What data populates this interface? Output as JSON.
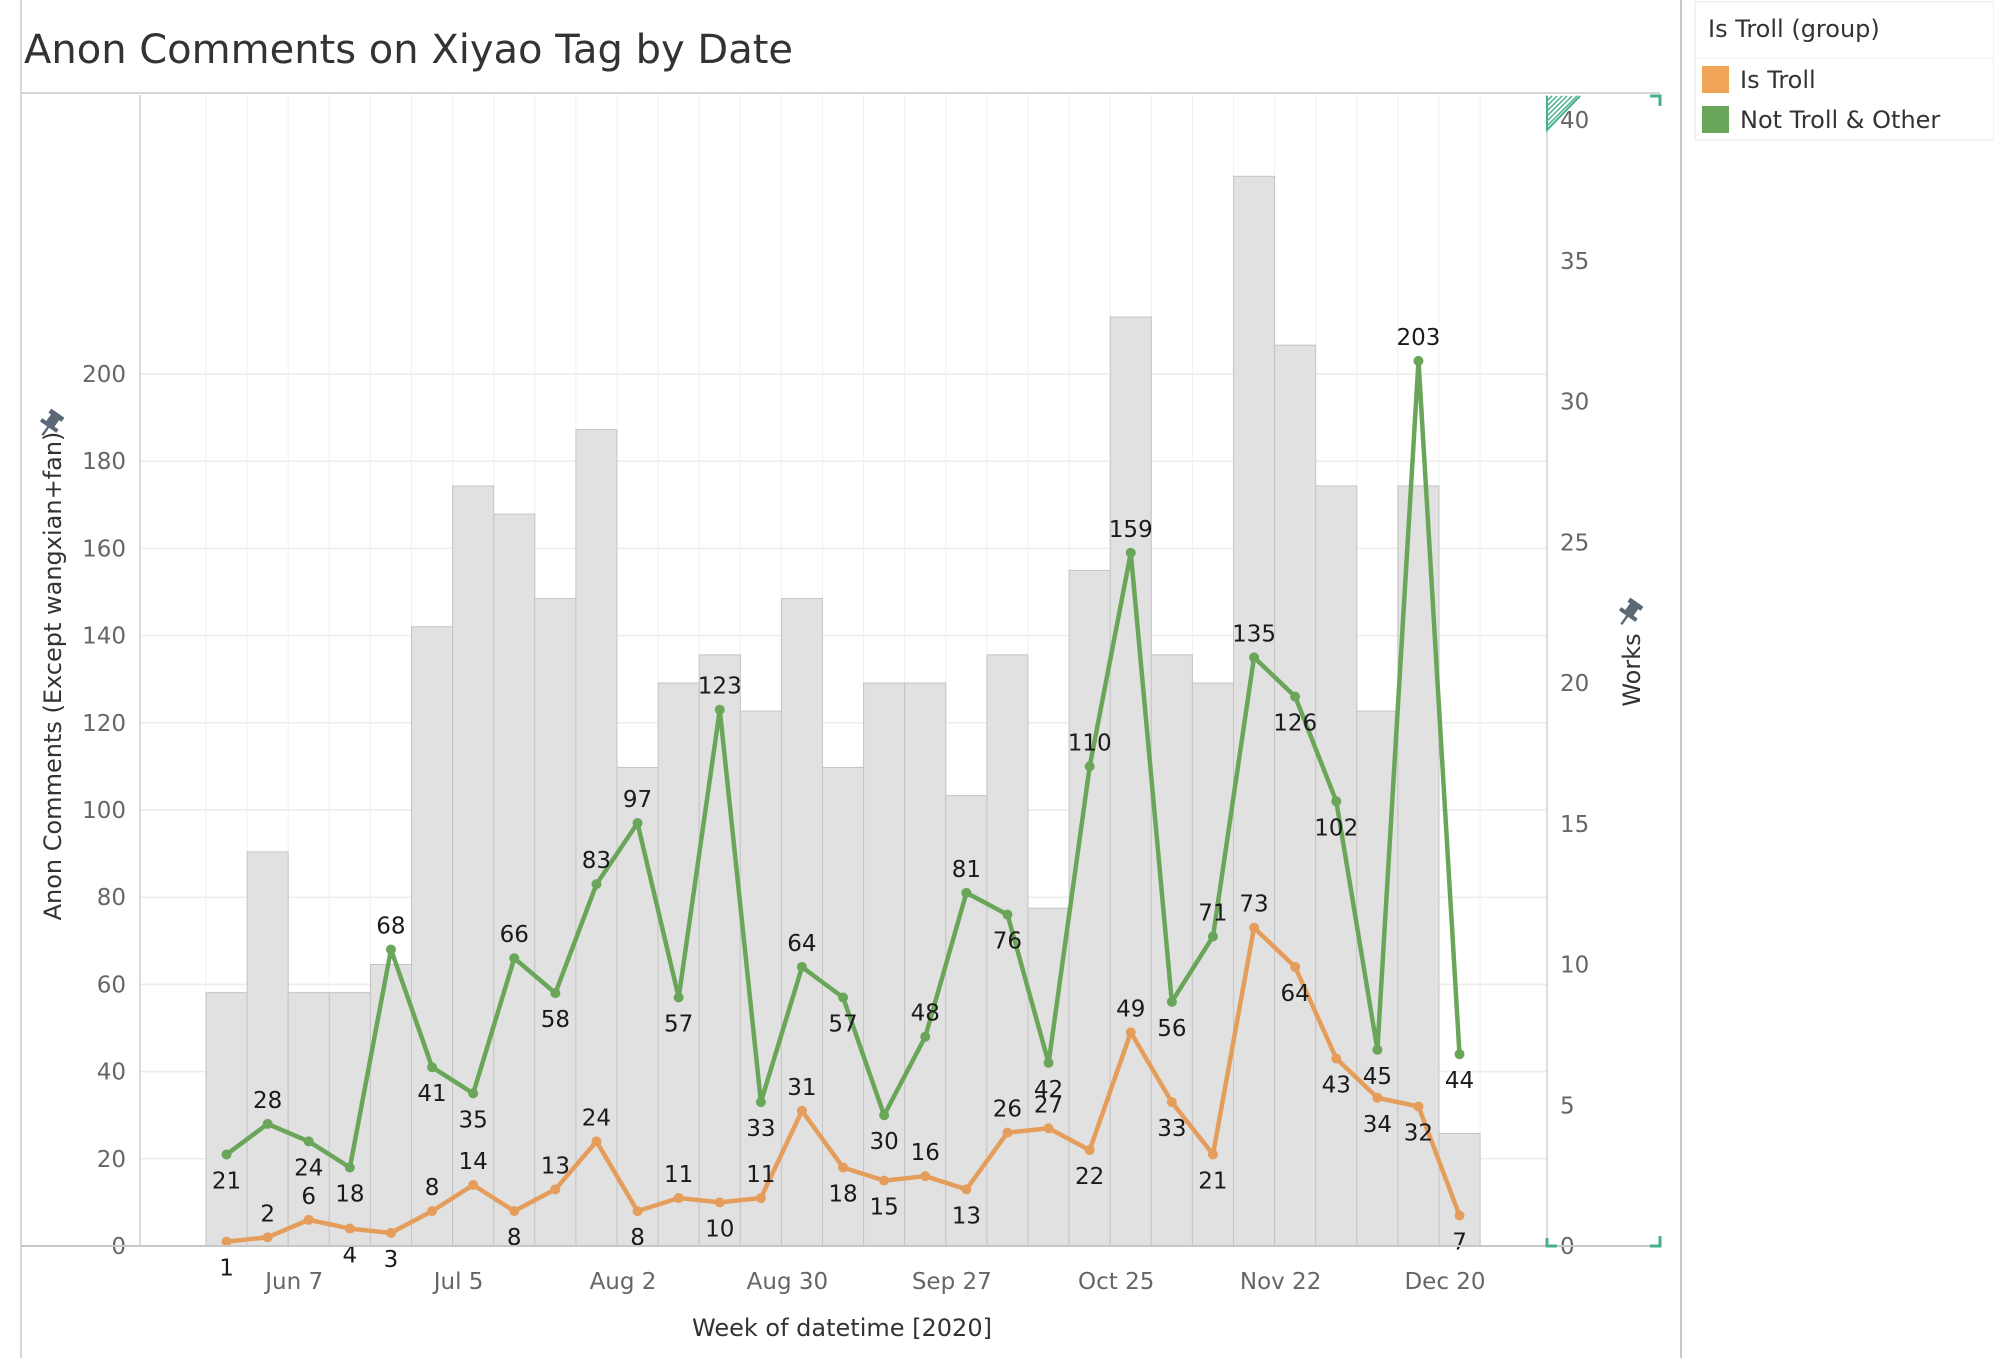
{
  "chart_data": {
    "type": "line",
    "title": "Anon Comments on Xiyao Tag by Date",
    "xlabel": "Week of datetime [2020]",
    "ylabel": "Anon Comments (Except wangxian+fan)",
    "y2label": "Works",
    "ylim": [
      0,
      210
    ],
    "y2lim": [
      0,
      40
    ],
    "yticks": [
      0,
      20,
      40,
      60,
      80,
      100,
      120,
      140,
      160,
      180,
      200
    ],
    "y2ticks": [
      0,
      5,
      10,
      15,
      20,
      25,
      30,
      35,
      40
    ],
    "x_ticks": [
      {
        "week": 2,
        "label": "Jun 7"
      },
      {
        "week": 6,
        "label": "Jul 5"
      },
      {
        "week": 10,
        "label": "Aug 2"
      },
      {
        "week": 14,
        "label": "Aug 30"
      },
      {
        "week": 18,
        "label": "Sep 27"
      },
      {
        "week": 22,
        "label": "Oct 25"
      },
      {
        "week": 26,
        "label": "Nov 22"
      },
      {
        "week": 30,
        "label": "Dec 20"
      }
    ],
    "works_bars": [
      9,
      14,
      9,
      9,
      10,
      22,
      27,
      26,
      23,
      29,
      17,
      20,
      21,
      19,
      23,
      17,
      20,
      20,
      16,
      21,
      12,
      24,
      33,
      21,
      20,
      38,
      32,
      27,
      19,
      27,
      4
    ],
    "series": [
      {
        "name": "Not Troll & Other",
        "color": "#6aa65a",
        "values": [
          21,
          28,
          24,
          18,
          68,
          41,
          35,
          66,
          58,
          83,
          97,
          57,
          123,
          33,
          64,
          57,
          30,
          48,
          81,
          76,
          42,
          110,
          159,
          56,
          71,
          135,
          126,
          102,
          45,
          203,
          44
        ]
      },
      {
        "name": "Is Troll",
        "color": "#e49d5b",
        "values": [
          1,
          2,
          6,
          4,
          3,
          8,
          14,
          8,
          13,
          24,
          8,
          11,
          10,
          11,
          31,
          18,
          15,
          16,
          13,
          26,
          27,
          22,
          49,
          33,
          21,
          73,
          64,
          43,
          34,
          32,
          7
        ]
      }
    ],
    "legend": {
      "title": "Is Troll (group)",
      "placement": "right",
      "items": [
        {
          "label": "Is Troll",
          "color": "#f0a456"
        },
        {
          "label": "Not Troll & Other",
          "color": "#6aa65a"
        }
      ]
    },
    "grid": true
  }
}
